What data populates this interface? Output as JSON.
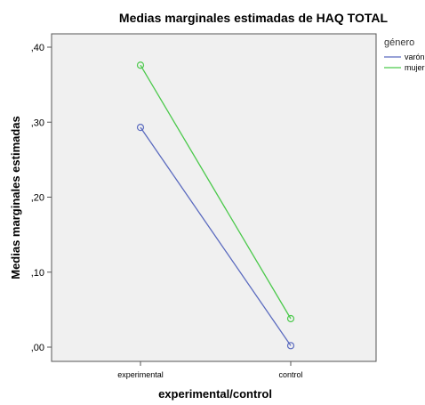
{
  "chart_data": {
    "type": "line",
    "title": "Medias marginales estimadas de HAQ TOTAL",
    "xlabel": "experimental/control",
    "ylabel": "Medias marginales estimadas",
    "categories": [
      "experimental",
      "control"
    ],
    "ylim": [
      0.0,
      0.42
    ],
    "yticks": [
      0.0,
      0.1,
      0.2,
      0.3,
      0.4
    ],
    "ytick_labels": [
      ",00",
      ",10",
      ",20",
      ",30",
      ",40"
    ],
    "legend": {
      "title": "género",
      "position": "top-right"
    },
    "grid": false,
    "series": [
      {
        "name": "varón",
        "values": [
          0.293,
          0.002
        ],
        "color": "#5b6bbf"
      },
      {
        "name": "mujer",
        "values": [
          0.376,
          0.038
        ],
        "color": "#4cc94c"
      }
    ],
    "plot_background": "#f0f0f0"
  }
}
